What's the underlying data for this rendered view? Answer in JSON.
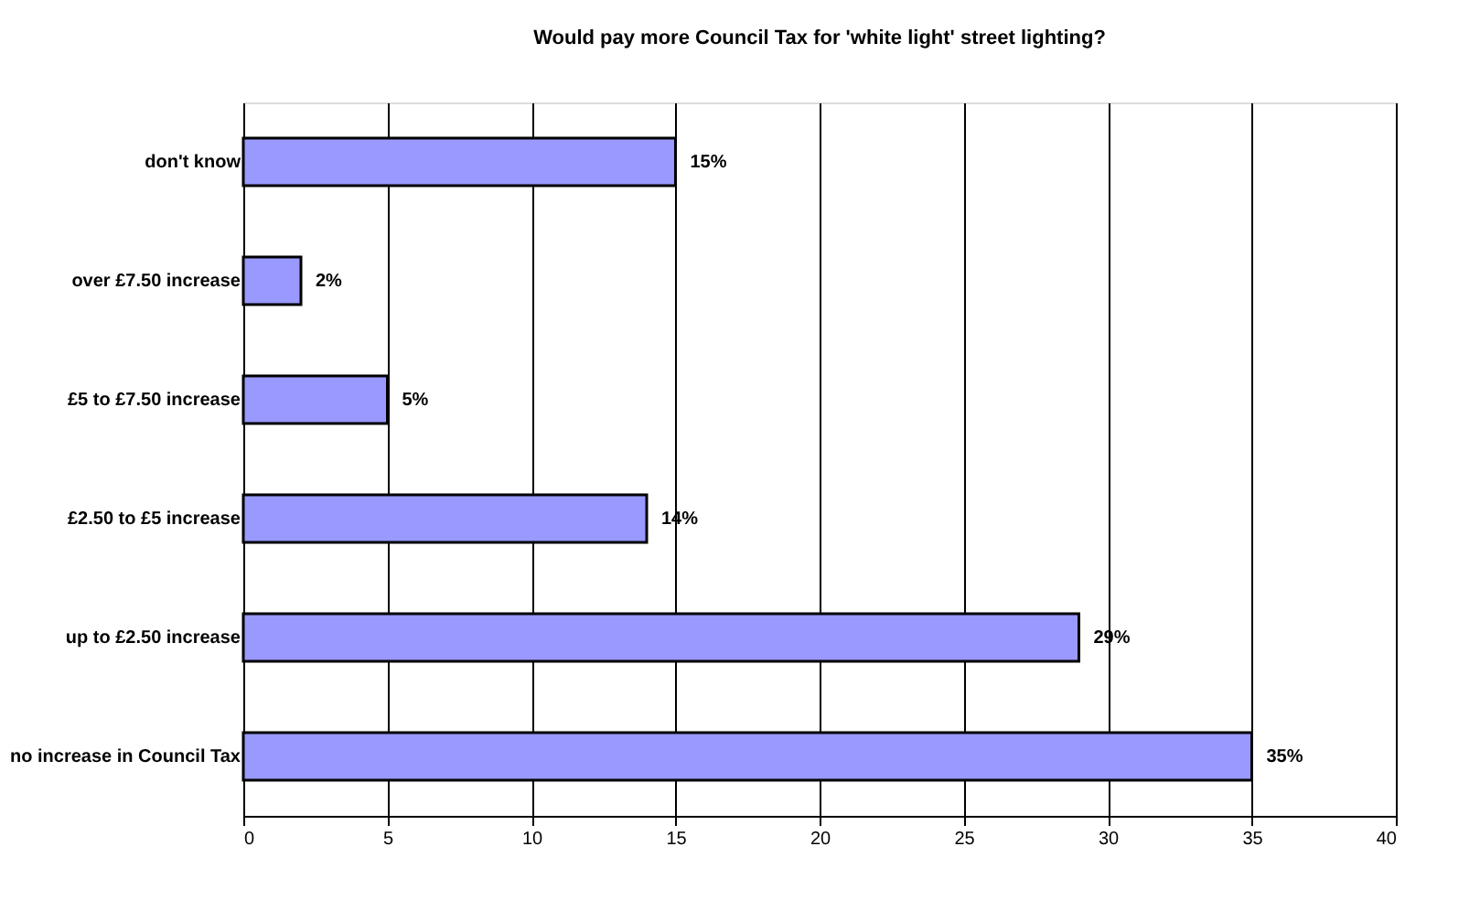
{
  "chart_data": {
    "type": "bar",
    "orientation": "horizontal",
    "title": "Would pay more Council Tax for 'white light' street lighting?",
    "categories": [
      "don't know",
      "over £7.50 increase",
      "£5 to £7.50 increase",
      "£2.50 to £5 increase",
      "up to £2.50 increase",
      "no increase in Council Tax"
    ],
    "values": [
      15,
      2,
      5,
      14,
      29,
      35
    ],
    "value_labels": [
      "15%",
      "2%",
      "5%",
      "14%",
      "29%",
      "35%"
    ],
    "color": "#9999ff",
    "xlim": [
      0,
      40
    ],
    "xticks": [
      0,
      5,
      10,
      15,
      20,
      25,
      30,
      35,
      40
    ],
    "grid": "x"
  }
}
